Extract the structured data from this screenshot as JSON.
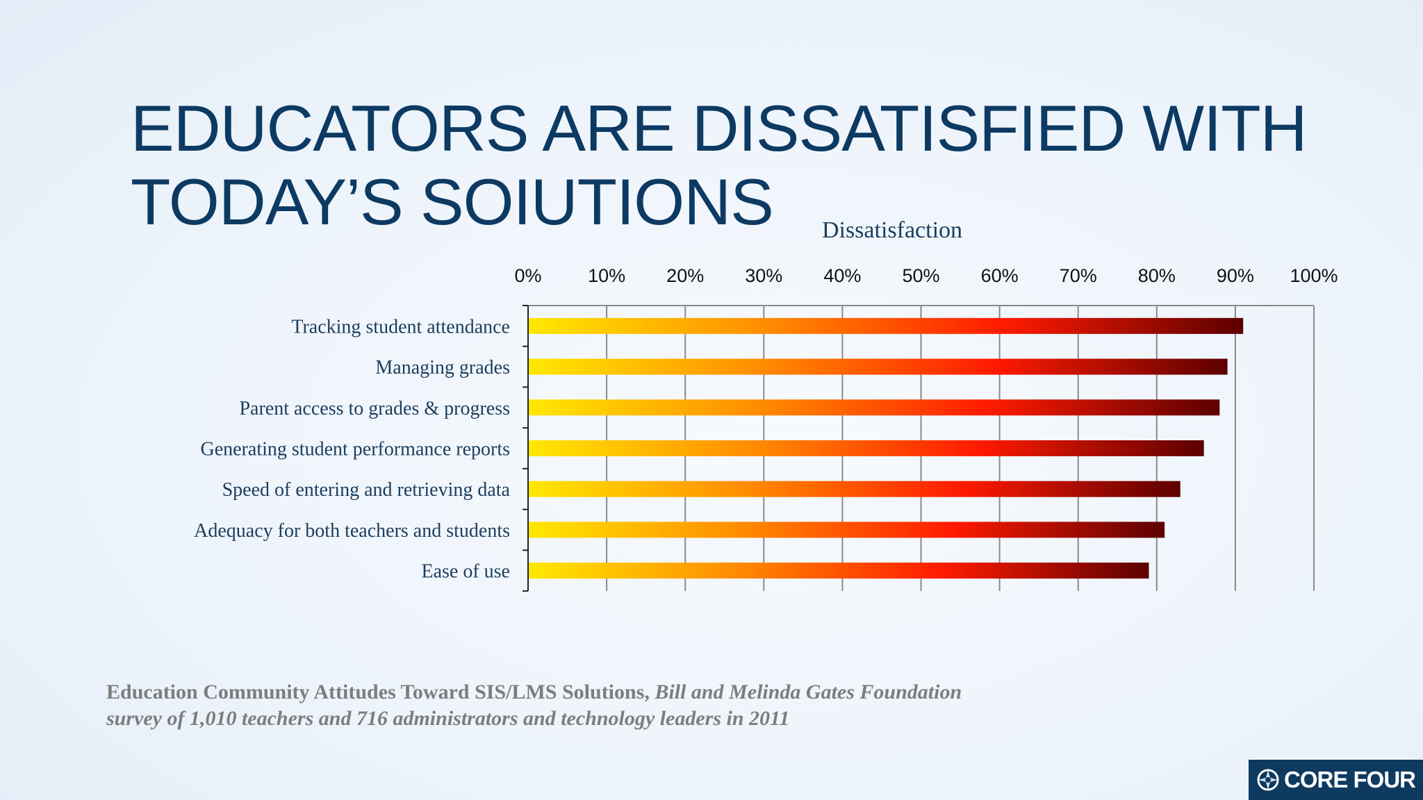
{
  "slide": {
    "title_line1": "EDUCATORS ARE DISSATISFIED WITH",
    "title_line2": "TODAY’S SOIUTIONS"
  },
  "chart_data": {
    "type": "bar",
    "orientation": "horizontal",
    "title": "Dissatisfaction",
    "categories": [
      "Tracking student attendance",
      "Managing grades",
      "Parent access to grades  & progress",
      "Generating student performance reports",
      "Speed of entering and retrieving data",
      "Adequacy for both teachers and students",
      "Ease of use"
    ],
    "values": [
      91,
      89,
      88,
      86,
      83,
      81,
      79
    ],
    "xlim": [
      0,
      100
    ],
    "xticks": [
      "0%",
      "10%",
      "20%",
      "30%",
      "40%",
      "50%",
      "60%",
      "70%",
      "80%",
      "90%",
      "100%"
    ],
    "x_axis_position": "top",
    "grid": true,
    "bar_gradient": [
      "#ffe800",
      "#ff8c00",
      "#ff1a00",
      "#5c0000"
    ]
  },
  "citation": {
    "bold_part": "Education Community Attitudes Toward SIS/LMS Solutions,",
    "italic_part": " Bill and Melinda Gates Foundation",
    "line2": "survey of 1,010 teachers and 716 administrators and technology leaders in 2011"
  },
  "logo": {
    "text": "CORE FOUR",
    "icon": "compass-icon"
  }
}
